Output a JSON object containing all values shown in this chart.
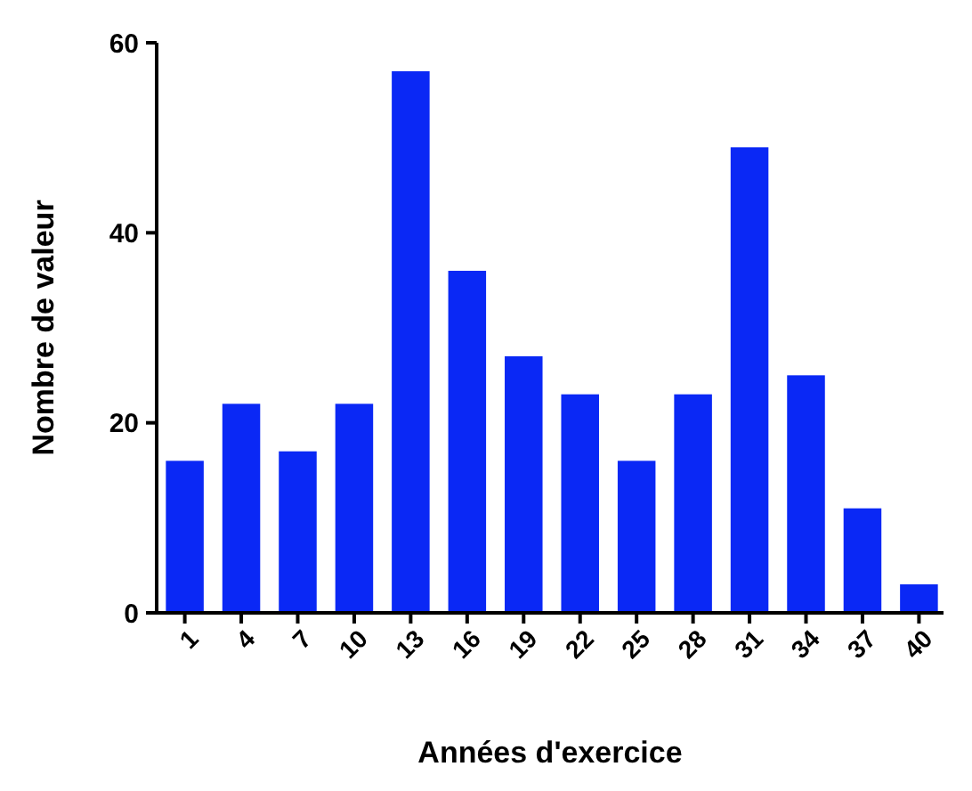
{
  "chart_data": {
    "type": "bar",
    "xlabel": "Années d'exercice",
    "ylabel": "Nombre de valeur",
    "categories": [
      "1",
      "4",
      "7",
      "10",
      "13",
      "16",
      "19",
      "22",
      "25",
      "28",
      "31",
      "34",
      "37",
      "40"
    ],
    "values": [
      16,
      22,
      17,
      22,
      57,
      36,
      27,
      23,
      16,
      23,
      49,
      25,
      11,
      3
    ],
    "color": "#0a28f5",
    "ylim": [
      0,
      60
    ],
    "yticks": [
      0,
      20,
      40,
      60
    ],
    "grid": false
  }
}
